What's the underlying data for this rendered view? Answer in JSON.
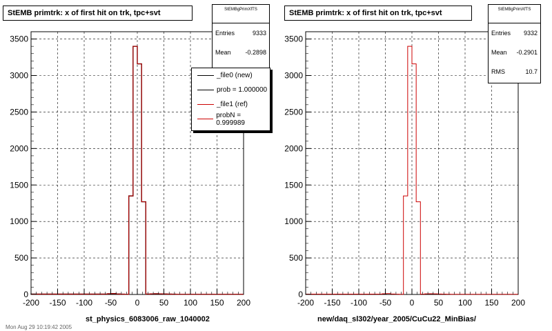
{
  "chart_data": [
    {
      "type": "histogram",
      "title": "StEMB primtrk: x of first hit on trk, tpc+svt",
      "xlabel": "st_physics_6083006_raw_1040002",
      "ylabel": "",
      "xlim": [
        -200,
        200
      ],
      "ylim": [
        0,
        3600
      ],
      "x_ticks": [
        "-200",
        "-150",
        "-100",
        "-50",
        "0",
        "50",
        "100",
        "150",
        "200"
      ],
      "y_ticks": [
        "0",
        "500",
        "1000",
        "1500",
        "2000",
        "2500",
        "3000",
        "3500"
      ],
      "grid": true,
      "bin_width": 8,
      "bins_x": [
        -64,
        -56,
        -48,
        -40,
        -32,
        -24,
        -16,
        -8,
        0,
        8,
        16,
        24,
        32,
        40,
        48,
        56,
        64,
        72
      ],
      "series": [
        {
          "name": "_file0 (new)",
          "color": "#000000",
          "values": [
            5,
            10,
            12,
            6,
            4,
            2,
            1350,
            3400,
            3160,
            1270,
            5,
            8,
            10,
            8,
            6,
            5,
            4,
            2
          ]
        },
        {
          "name": "_file1 (ref)",
          "color": "#cc0000",
          "values": [
            5,
            10,
            12,
            6,
            4,
            2,
            1350,
            3400,
            3160,
            1270,
            5,
            8,
            10,
            8,
            6,
            5,
            4,
            2
          ]
        }
      ],
      "stats": {
        "name": "StEMBgPrimXfTS",
        "rows": [
          {
            "label": "Entries",
            "value": "9333"
          },
          {
            "label": "Mean",
            "value": "-0.2898"
          }
        ]
      },
      "legend": {
        "position": "top-right",
        "entries": [
          {
            "label": "_file0 (new)",
            "color": "#000000"
          },
          {
            "label": "prob = 1.000000",
            "color": "#000000"
          },
          {
            "label": "_file1 (ref)",
            "color": "#cc0000"
          },
          {
            "label": "probN = 0.999989",
            "color": "#cc0000"
          }
        ]
      }
    },
    {
      "type": "histogram",
      "title": "StEMB primtrk: x of first hit on trk, tpc+svt",
      "xlabel": "new/daq_sl302/year_2005/CuCu22_MinBias/",
      "ylabel": "",
      "xlim": [
        -200,
        200
      ],
      "ylim": [
        0,
        3600
      ],
      "x_ticks": [
        "-200",
        "-150",
        "-100",
        "-50",
        "0",
        "50",
        "100",
        "150",
        "200"
      ],
      "y_ticks": [
        "0",
        "500",
        "1000",
        "1500",
        "2000",
        "2500",
        "3000",
        "3500"
      ],
      "grid": true,
      "bin_width": 8,
      "bins_x": [
        -64,
        -56,
        -48,
        -40,
        -32,
        -24,
        -16,
        -8,
        0,
        8,
        16,
        24,
        32,
        40,
        48,
        56,
        64,
        72
      ],
      "series": [
        {
          "name": "",
          "color": "#cc0000",
          "values": [
            5,
            10,
            12,
            6,
            4,
            2,
            1350,
            3400,
            3160,
            1270,
            5,
            8,
            10,
            8,
            6,
            5,
            4,
            2
          ]
        }
      ],
      "stats": {
        "name": "StEMBgPrimXfTS",
        "rows": [
          {
            "label": "Entries",
            "value": "9332"
          },
          {
            "label": "Mean",
            "value": "-0.2901"
          },
          {
            "label": "RMS",
            "value": "10.7"
          }
        ]
      }
    }
  ],
  "footer": "Mon Aug 29 10:19:42 2005"
}
